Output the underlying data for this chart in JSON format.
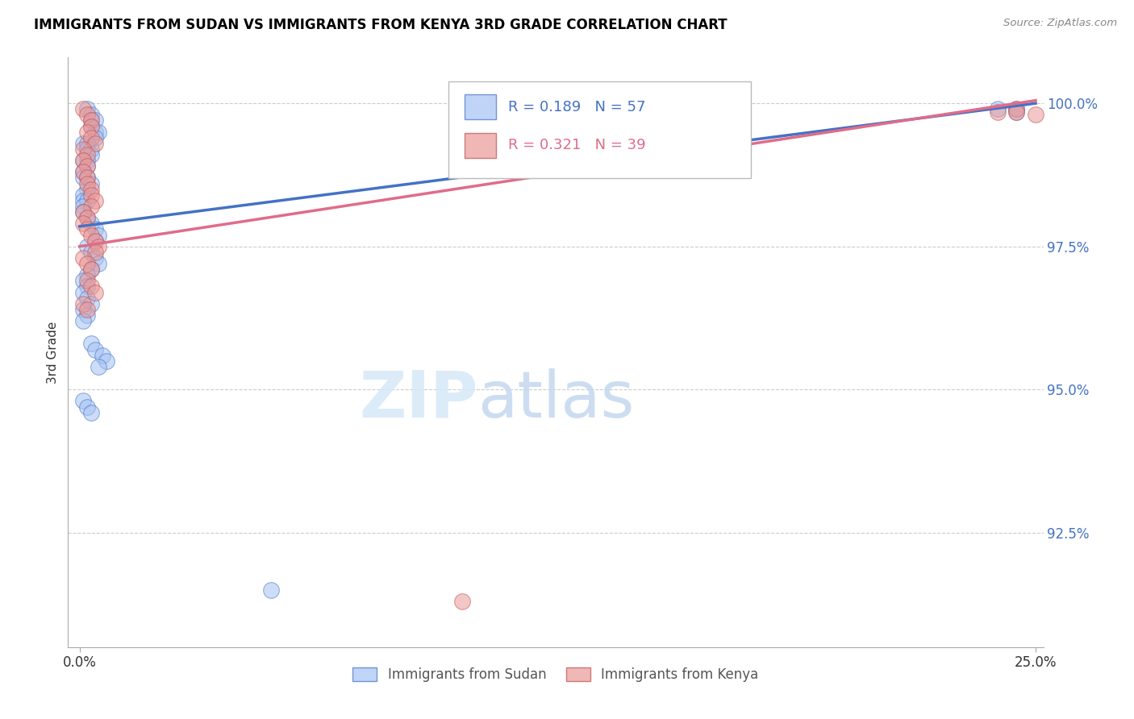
{
  "title": "IMMIGRANTS FROM SUDAN VS IMMIGRANTS FROM KENYA 3RD GRADE CORRELATION CHART",
  "source": "Source: ZipAtlas.com",
  "ylabel": "3rd Grade",
  "legend_label_blue": "Immigrants from Sudan",
  "legend_label_pink": "Immigrants from Kenya",
  "blue_color": "#a4c2f4",
  "pink_color": "#ea9999",
  "line_blue": "#4472c4",
  "line_pink": "#e06c8a",
  "watermark_zip": "ZIP",
  "watermark_atlas": "atlas",
  "xlim_min": 0.0,
  "xlim_max": 0.25,
  "ylim_min": 90.5,
  "ylim_max": 100.8,
  "ytick_vals": [
    92.5,
    95.0,
    97.5,
    100.0
  ],
  "ytick_labels": [
    "92.5%",
    "95.0%",
    "97.5%",
    "100.0%"
  ],
  "xtick_vals": [
    0.0,
    0.25
  ],
  "xtick_labels": [
    "0.0%",
    "25.0%"
  ],
  "blue_r": 0.189,
  "blue_n": 57,
  "pink_r": 0.321,
  "pink_n": 39,
  "sudan_x": [
    0.002,
    0.003,
    0.003,
    0.004,
    0.003,
    0.004,
    0.005,
    0.004,
    0.001,
    0.002,
    0.002,
    0.003,
    0.003,
    0.002,
    0.001,
    0.002,
    0.001,
    0.001,
    0.002,
    0.003,
    0.002,
    0.001,
    0.001,
    0.002,
    0.001,
    0.001,
    0.002,
    0.003,
    0.004,
    0.005,
    0.004,
    0.002,
    0.003,
    0.004,
    0.005,
    0.003,
    0.002,
    0.001,
    0.002,
    0.001,
    0.002,
    0.003,
    0.001,
    0.002,
    0.001,
    0.003,
    0.004,
    0.006,
    0.007,
    0.005,
    0.001,
    0.002,
    0.003,
    0.05,
    0.24,
    0.245,
    0.245
  ],
  "sudan_y": [
    99.9,
    99.8,
    99.7,
    99.7,
    99.6,
    99.5,
    99.5,
    99.4,
    99.3,
    99.3,
    99.2,
    99.2,
    99.1,
    99.0,
    99.0,
    98.9,
    98.8,
    98.7,
    98.7,
    98.6,
    98.5,
    98.4,
    98.3,
    98.3,
    98.2,
    98.1,
    98.0,
    97.9,
    97.8,
    97.7,
    97.6,
    97.5,
    97.4,
    97.3,
    97.2,
    97.1,
    97.0,
    96.9,
    96.8,
    96.7,
    96.6,
    96.5,
    96.4,
    96.3,
    96.2,
    95.8,
    95.7,
    95.6,
    95.5,
    95.4,
    94.8,
    94.7,
    94.6,
    91.5,
    99.9,
    99.9,
    99.85
  ],
  "kenya_x": [
    0.001,
    0.002,
    0.003,
    0.003,
    0.002,
    0.003,
    0.004,
    0.001,
    0.002,
    0.001,
    0.002,
    0.001,
    0.002,
    0.002,
    0.003,
    0.003,
    0.004,
    0.003,
    0.001,
    0.002,
    0.001,
    0.002,
    0.003,
    0.004,
    0.005,
    0.004,
    0.001,
    0.002,
    0.003,
    0.002,
    0.003,
    0.004,
    0.001,
    0.002,
    0.1,
    0.24,
    0.245,
    0.245,
    0.25
  ],
  "kenya_y": [
    99.9,
    99.8,
    99.7,
    99.6,
    99.5,
    99.4,
    99.3,
    99.2,
    99.1,
    99.0,
    98.9,
    98.8,
    98.7,
    98.6,
    98.5,
    98.4,
    98.3,
    98.2,
    98.1,
    98.0,
    97.9,
    97.8,
    97.7,
    97.6,
    97.5,
    97.4,
    97.3,
    97.2,
    97.1,
    96.9,
    96.8,
    96.7,
    96.5,
    96.4,
    91.3,
    99.85,
    99.9,
    99.85,
    99.8
  ],
  "blue_line_x0": 0.0,
  "blue_line_x1": 0.25,
  "blue_line_y0": 97.85,
  "blue_line_y1": 100.0,
  "pink_line_x0": 0.0,
  "pink_line_x1": 0.25,
  "pink_line_y0": 97.5,
  "pink_line_y1": 100.05
}
